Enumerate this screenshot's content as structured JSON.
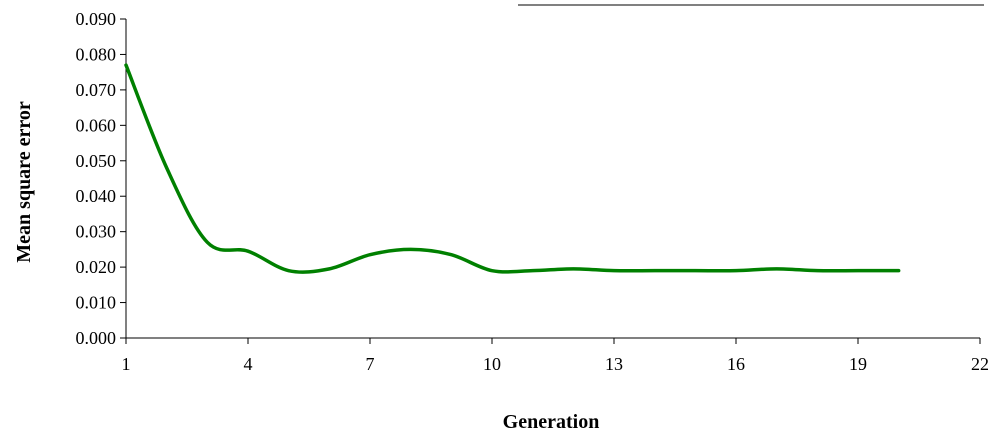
{
  "chart_data": {
    "type": "line",
    "title": "",
    "xlabel": "Generation",
    "ylabel": "Mean square error",
    "xlim": [
      1,
      22
    ],
    "ylim": [
      0.0,
      0.09
    ],
    "x_ticks": [
      "1",
      "4",
      "7",
      "10",
      "13",
      "16",
      "19",
      "22"
    ],
    "y_ticks": [
      "0.000",
      "0.010",
      "0.020",
      "0.030",
      "0.040",
      "0.050",
      "0.060",
      "0.070",
      "0.080",
      "0.090"
    ],
    "grid": false,
    "legend": "none",
    "series": [
      {
        "color": "#008000",
        "smooth": true,
        "x": [
          1,
          2,
          3,
          4,
          5,
          6,
          7,
          8,
          9,
          10,
          11,
          12,
          13,
          14,
          15,
          16,
          17,
          18,
          19,
          20
        ],
        "values": [
          0.077,
          0.048,
          0.027,
          0.0245,
          0.019,
          0.0195,
          0.0235,
          0.025,
          0.0235,
          0.019,
          0.019,
          0.0195,
          0.019,
          0.019,
          0.019,
          0.019,
          0.0195,
          0.019,
          0.019,
          0.019
        ]
      }
    ]
  }
}
